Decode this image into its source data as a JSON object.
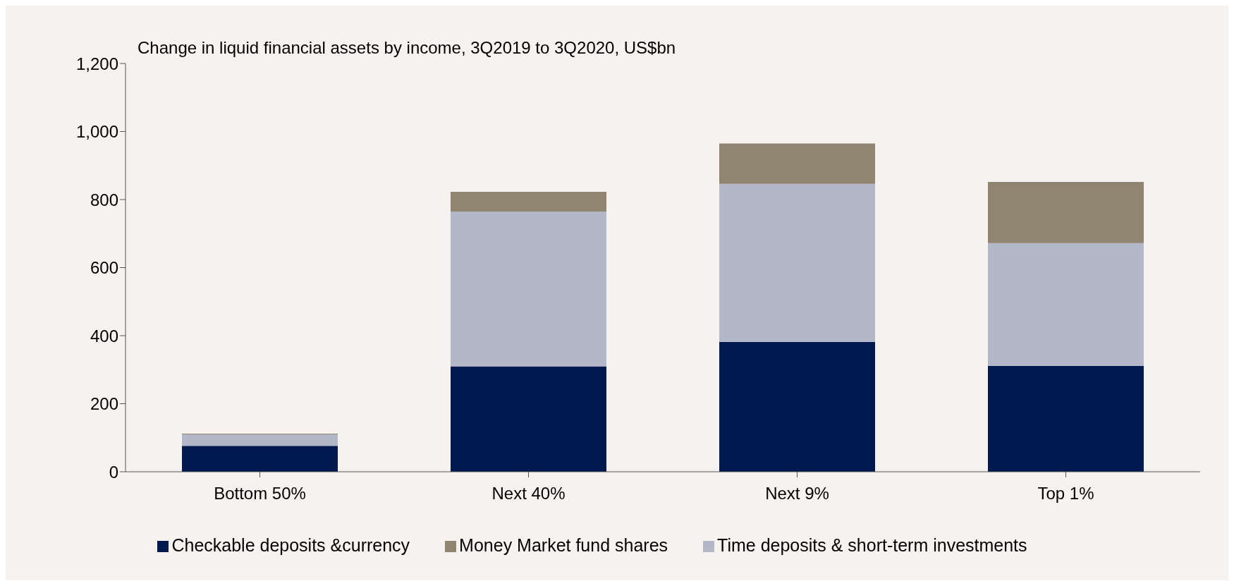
{
  "chart_data": {
    "type": "bar",
    "stacked": true,
    "title": "Change in liquid financial assets by income, 3Q2019 to 3Q2020, US$bn",
    "categories": [
      "Bottom 50%",
      "Next 40%",
      "Next 9%",
      "Top 1%"
    ],
    "series": [
      {
        "name": "Checkable deposits &currency",
        "color": "#001a4f",
        "values": [
          76,
          310,
          382,
          311
        ]
      },
      {
        "name": "Time deposits & short-term investments",
        "color": "#b2b8c8",
        "values": [
          34,
          455,
          464,
          361
        ]
      },
      {
        "name": "Money Market fund shares",
        "color": "#8f8570",
        "values": [
          2,
          58,
          119,
          180
        ]
      }
    ],
    "ylim": [
      0,
      1200
    ],
    "yticks": [
      {
        "value": 0,
        "label": "0"
      },
      {
        "value": 200,
        "label": "200"
      },
      {
        "value": 400,
        "label": "400"
      },
      {
        "value": 600,
        "label": "600"
      },
      {
        "value": 800,
        "label": "800"
      },
      {
        "value": 1000,
        "label": "1,000"
      },
      {
        "value": 1200,
        "label": "1,200"
      }
    ],
    "grid": false,
    "legend": "bottom"
  }
}
